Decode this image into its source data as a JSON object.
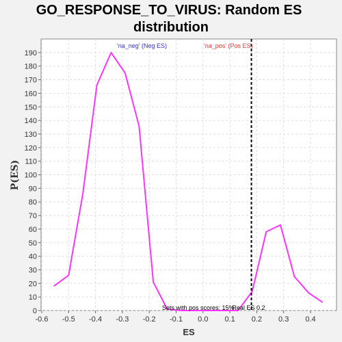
{
  "chart_data": {
    "type": "line",
    "title_line1": "GO_RESPONSE_TO_VIRUS: Random ES",
    "title_line2": "distribution",
    "xlabel": "ES",
    "ylabel": "P(ES)",
    "xlim": [
      -0.6,
      0.5
    ],
    "ylim": [
      0,
      200
    ],
    "xticks": [
      -0.6,
      -0.5,
      -0.4,
      -0.3,
      -0.2,
      -0.1,
      0.0,
      0.1,
      0.2,
      0.3,
      0.4
    ],
    "xtick_labels": [
      "-0.6",
      "-0.5",
      "-0.4",
      "-0.3",
      "-0.2",
      "-0.1",
      "0.0",
      "0.1",
      "0.2",
      "0.3",
      "0.4"
    ],
    "yticks": [
      0,
      10,
      20,
      30,
      40,
      50,
      60,
      70,
      80,
      90,
      100,
      110,
      120,
      130,
      140,
      150,
      160,
      170,
      180,
      190
    ],
    "grid": true,
    "series": [
      {
        "color": "#ff33ff",
        "x": [
          -0.555,
          -0.5,
          -0.447,
          -0.395,
          -0.342,
          -0.29,
          -0.238,
          -0.185,
          -0.133,
          -0.08,
          -0.028,
          0.025,
          0.078,
          0.13,
          0.183,
          0.235,
          0.288,
          0.34,
          0.393,
          0.445
        ],
        "y": [
          18,
          26,
          86,
          166,
          190,
          175,
          136,
          21,
          1,
          0,
          0,
          0,
          0,
          0,
          14,
          58,
          63,
          25,
          13,
          6
        ]
      }
    ],
    "real_es": {
      "x": 0.18,
      "label": "Real ES 0.2",
      "color": "#000000"
    },
    "legend": [
      {
        "text": "'na_neg' (Neg ES)",
        "color": "#3333cc"
      },
      {
        "text": "'na_pos' (Pos ES)",
        "color": "#ee3333"
      }
    ],
    "annotation": "Sets with pos scores: 15%"
  }
}
